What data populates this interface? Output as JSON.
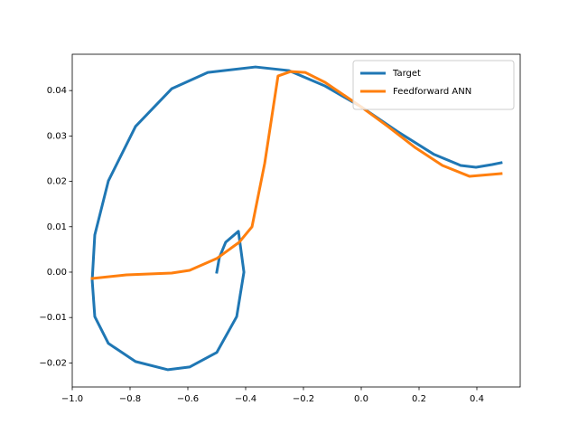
{
  "chart_data": {
    "type": "line",
    "xlim": [
      -1.0,
      0.55
    ],
    "ylim": [
      -0.0253,
      0.048
    ],
    "xticks": [
      {
        "value": -1.0,
        "label": "−1.0"
      },
      {
        "value": -0.8,
        "label": "−0.8"
      },
      {
        "value": -0.6,
        "label": "−0.6"
      },
      {
        "value": -0.4,
        "label": "−0.4"
      },
      {
        "value": -0.2,
        "label": "−0.2"
      },
      {
        "value": 0.0,
        "label": "0.0"
      },
      {
        "value": 0.2,
        "label": "0.2"
      },
      {
        "value": 0.4,
        "label": "0.4"
      }
    ],
    "yticks": [
      {
        "value": -0.02,
        "label": "−0.02"
      },
      {
        "value": -0.01,
        "label": "−0.01"
      },
      {
        "value": 0.0,
        "label": "0.00"
      },
      {
        "value": 0.01,
        "label": "0.01"
      },
      {
        "value": 0.02,
        "label": "0.02"
      },
      {
        "value": 0.03,
        "label": "0.03"
      },
      {
        "value": 0.04,
        "label": "0.04"
      }
    ],
    "legend": "upper right",
    "series": [
      {
        "name": "Target",
        "color": "#1f77b4",
        "x": [
          -0.5,
          -0.491,
          -0.469,
          -0.425,
          -0.406,
          -0.431,
          -0.5,
          -0.594,
          -0.669,
          -0.781,
          -0.875,
          -0.922,
          -0.931,
          -0.922,
          -0.875,
          -0.781,
          -0.656,
          -0.531,
          -0.366,
          -0.25,
          -0.125,
          0.0,
          0.125,
          0.25,
          0.344,
          0.397,
          0.453,
          0.484
        ],
        "values": [
          0.0,
          0.0032,
          0.0066,
          0.009,
          0.0,
          -0.0098,
          -0.0177,
          -0.0209,
          -0.0215,
          -0.0197,
          -0.0157,
          -0.0098,
          -0.0018,
          0.0082,
          0.0201,
          0.0321,
          0.0404,
          0.044,
          0.0452,
          0.0444,
          0.041,
          0.0364,
          0.031,
          0.026,
          0.0235,
          0.0231,
          0.0237,
          0.0241
        ]
      },
      {
        "name": "Feedforward ANN",
        "color": "#ff7f0e",
        "x": [
          -0.931,
          -0.8125,
          -0.656,
          -0.594,
          -0.5,
          -0.422,
          -0.378,
          -0.334,
          -0.288,
          -0.244,
          -0.194,
          -0.125,
          0.0,
          0.094,
          0.1875,
          0.281,
          0.375,
          0.484
        ],
        "values": [
          -0.0014,
          -0.0006,
          -0.0002,
          0.0004,
          0.003,
          0.0066,
          0.01,
          0.024,
          0.0432,
          0.0442,
          0.044,
          0.0418,
          0.0364,
          0.032,
          0.0274,
          0.0235,
          0.0211,
          0.0217
        ]
      }
    ]
  }
}
